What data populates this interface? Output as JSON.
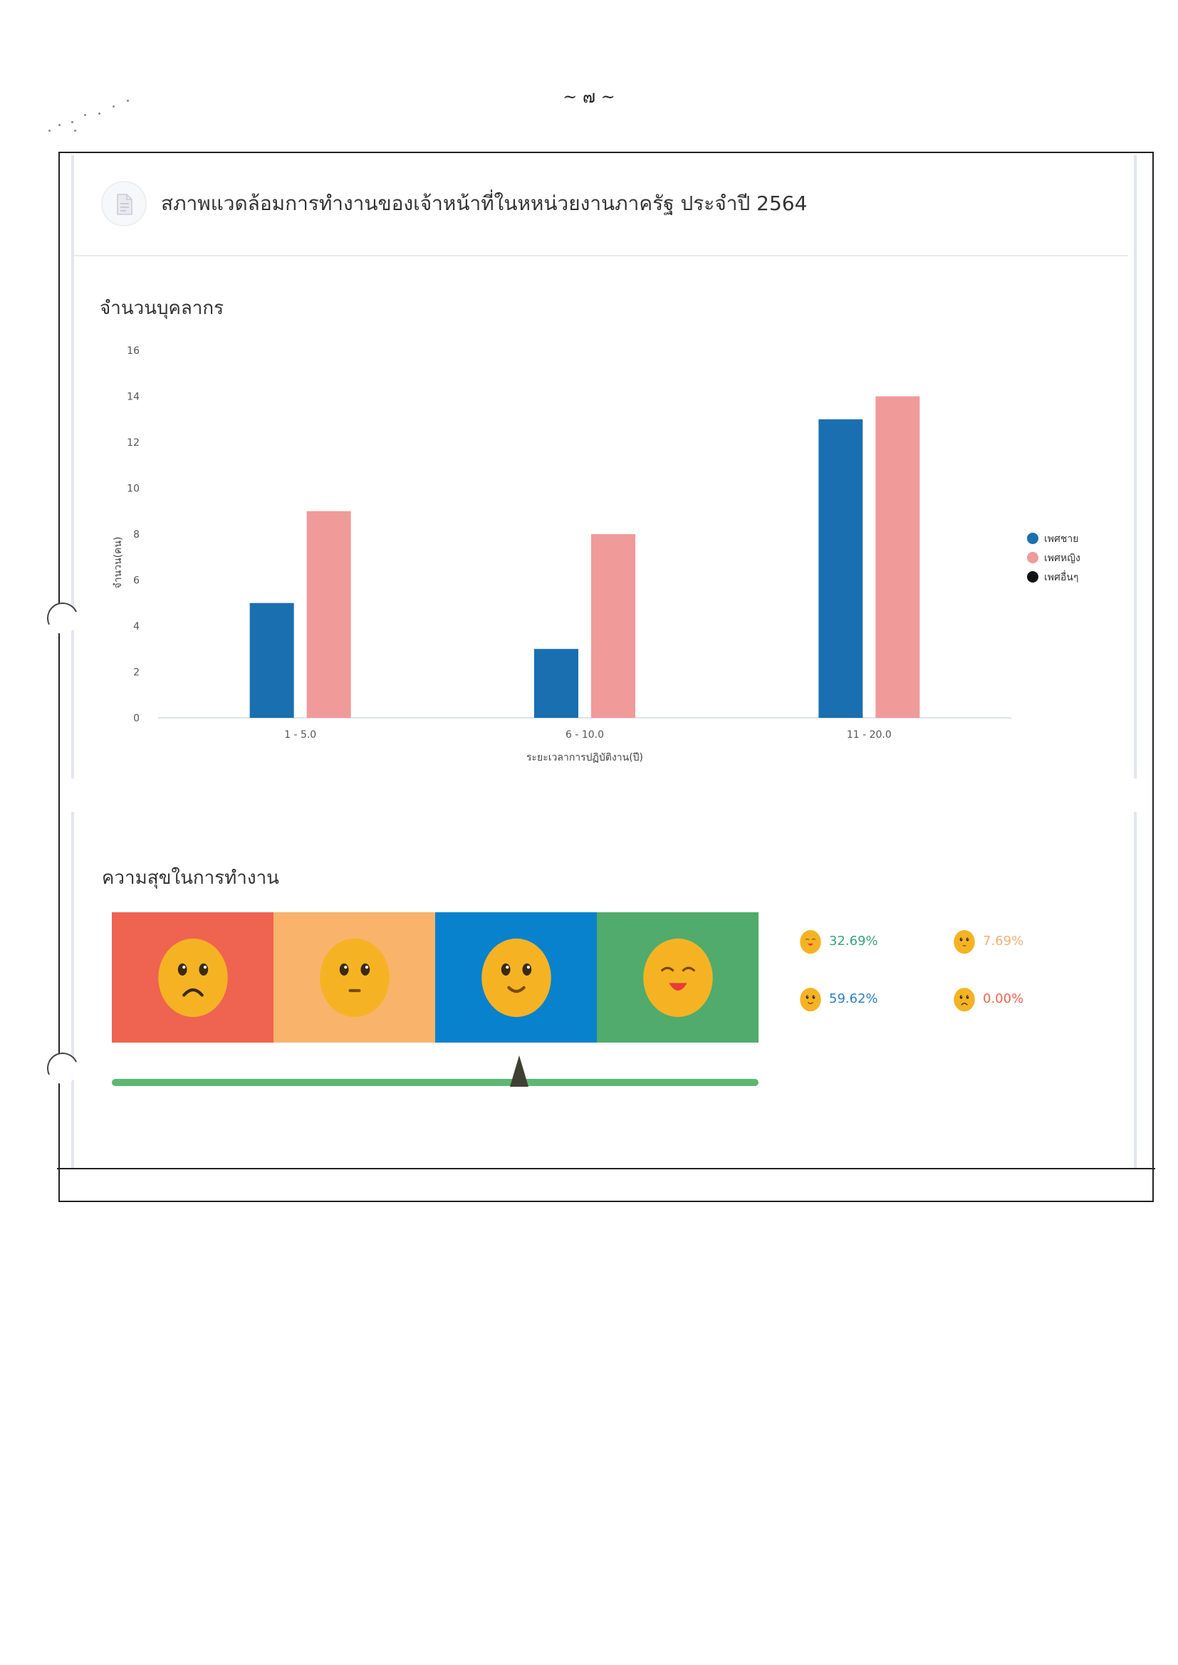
{
  "page_number": "~ ๗ ~",
  "header": {
    "title": "สภาพแวดล้อมการทำงานของเจ้าหน้าที่ในหหน่วยงานภาครัฐ ประจำปี 2564",
    "icon": "document-icon"
  },
  "staff_section": {
    "title": "จำนวนบุคลากร"
  },
  "chart_data": {
    "type": "bar",
    "title": "",
    "xlabel": "ระยะเวลาการปฏิบัติงาน(ปี)",
    "ylabel": "จำนวน(คน)",
    "ylim": [
      0,
      16
    ],
    "yticks": [
      0,
      2,
      4,
      6,
      8,
      10,
      12,
      14,
      16
    ],
    "categories": [
      "1 - 5.0",
      "6 - 10.0",
      "11 - 20.0"
    ],
    "series": [
      {
        "name": "เพศชาย",
        "color": "#1a6fb0",
        "values": [
          5,
          3,
          13
        ]
      },
      {
        "name": "เพศหญิง",
        "color": "#f09a9a",
        "values": [
          9,
          8,
          14
        ]
      },
      {
        "name": "เพศอื่นๆ",
        "color": "#111111",
        "values": [
          0,
          0,
          0
        ]
      }
    ],
    "legend_position": "right",
    "grid": false
  },
  "happiness_section": {
    "title": "ความสุขในการทำงาน",
    "faces": [
      {
        "icon": "sad-face-icon",
        "bg": "#ef6351",
        "mood": "sad"
      },
      {
        "icon": "neutral-face-icon",
        "bg": "#f9b36b",
        "mood": "neutral"
      },
      {
        "icon": "smile-face-icon",
        "bg": "#0882cc",
        "mood": "smile"
      },
      {
        "icon": "laughing-face-icon",
        "bg": "#50ab6c",
        "mood": "laugh"
      }
    ],
    "pointer_value": 0.63,
    "stats": [
      {
        "icon": "face-icon",
        "value": "32.69%",
        "color": "#3aa37a"
      },
      {
        "icon": "face-icon",
        "value": "7.69%",
        "color": "#f0b27a"
      },
      {
        "icon": "face-icon",
        "value": "59.62%",
        "color": "#2c7fc0"
      },
      {
        "icon": "face-icon",
        "value": "0.00%",
        "color": "#ef6351"
      }
    ]
  }
}
